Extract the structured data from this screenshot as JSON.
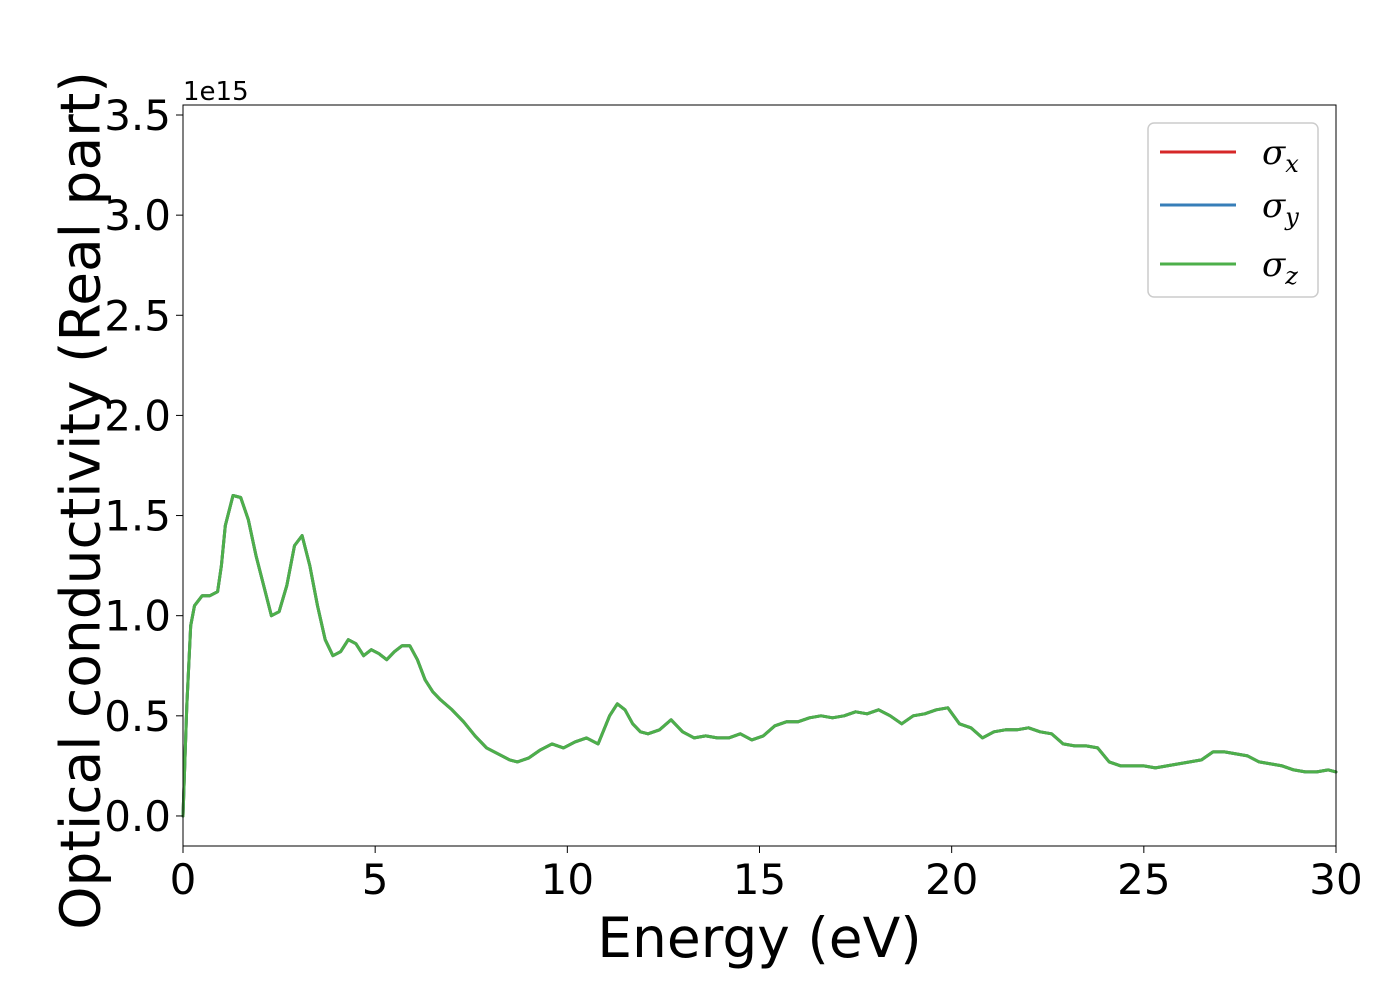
{
  "chart_data": {
    "type": "line",
    "title": "",
    "xlabel": "Energy (eV)",
    "ylabel": "Optical conductivity (Real part)",
    "y_offset_label": "1e15",
    "xlim": [
      0,
      30
    ],
    "ylim": [
      -0.15,
      3.55
    ],
    "x_ticks": [
      0,
      5,
      10,
      15,
      20,
      25,
      30
    ],
    "x_tick_labels": [
      "0",
      "5",
      "10",
      "15",
      "20",
      "25",
      "30"
    ],
    "y_ticks": [
      0.0,
      0.5,
      1.0,
      1.5,
      2.0,
      2.5,
      3.0,
      3.5
    ],
    "y_tick_labels": [
      "0.0",
      "0.5",
      "1.0",
      "1.5",
      "2.0",
      "2.5",
      "3.0",
      "3.5"
    ],
    "grid": false,
    "legend_position": "top-right",
    "x": [
      0,
      0.1,
      0.2,
      0.3,
      0.5,
      0.7,
      0.9,
      1.0,
      1.1,
      1.3,
      1.5,
      1.7,
      1.9,
      2.1,
      2.3,
      2.5,
      2.7,
      2.9,
      3.1,
      3.3,
      3.5,
      3.7,
      3.9,
      4.1,
      4.3,
      4.5,
      4.7,
      4.9,
      5.1,
      5.3,
      5.5,
      5.7,
      5.9,
      6.1,
      6.3,
      6.5,
      6.7,
      7.0,
      7.3,
      7.6,
      7.9,
      8.2,
      8.5,
      8.7,
      9.0,
      9.3,
      9.6,
      9.9,
      10.2,
      10.5,
      10.8,
      11.1,
      11.3,
      11.5,
      11.7,
      11.9,
      12.1,
      12.4,
      12.7,
      13.0,
      13.3,
      13.6,
      13.9,
      14.2,
      14.5,
      14.8,
      15.1,
      15.4,
      15.7,
      16.0,
      16.3,
      16.6,
      16.9,
      17.2,
      17.5,
      17.8,
      18.1,
      18.4,
      18.7,
      19.0,
      19.3,
      19.6,
      19.9,
      20.2,
      20.5,
      20.8,
      21.1,
      21.4,
      21.7,
      22.0,
      22.3,
      22.6,
      22.9,
      23.2,
      23.5,
      23.8,
      24.1,
      24.4,
      24.7,
      25.0,
      25.3,
      25.6,
      25.9,
      26.2,
      26.5,
      26.8,
      27.1,
      27.4,
      27.7,
      28.0,
      28.3,
      28.6,
      28.9,
      29.2,
      29.5,
      29.8,
      30.0
    ],
    "series": [
      {
        "name": "σ_x",
        "color": "#d62728",
        "values": [
          0.0,
          0.55,
          0.95,
          1.05,
          1.1,
          1.1,
          1.12,
          1.25,
          1.45,
          1.6,
          1.59,
          1.48,
          1.3,
          1.15,
          1.0,
          1.02,
          1.15,
          1.35,
          1.4,
          1.25,
          1.05,
          0.88,
          0.8,
          0.82,
          0.88,
          0.86,
          0.8,
          0.83,
          0.81,
          0.78,
          0.82,
          0.85,
          0.85,
          0.78,
          0.68,
          0.62,
          0.58,
          0.53,
          0.47,
          0.4,
          0.34,
          0.31,
          0.28,
          0.27,
          0.29,
          0.33,
          0.36,
          0.34,
          0.37,
          0.39,
          0.36,
          0.5,
          0.56,
          0.53,
          0.46,
          0.42,
          0.41,
          0.43,
          0.48,
          0.42,
          0.39,
          0.4,
          0.39,
          0.39,
          0.41,
          0.38,
          0.4,
          0.45,
          0.47,
          0.47,
          0.49,
          0.5,
          0.49,
          0.5,
          0.52,
          0.51,
          0.53,
          0.5,
          0.46,
          0.5,
          0.51,
          0.53,
          0.54,
          0.46,
          0.44,
          0.39,
          0.42,
          0.43,
          0.43,
          0.44,
          0.42,
          0.41,
          0.36,
          0.35,
          0.35,
          0.34,
          0.27,
          0.25,
          0.25,
          0.25,
          0.24,
          0.25,
          0.26,
          0.27,
          0.28,
          0.32,
          0.32,
          0.31,
          0.3,
          0.27,
          0.26,
          0.25,
          0.23,
          0.22,
          0.22,
          0.23,
          0.22
        ]
      },
      {
        "name": "σ_y",
        "color": "#377eb8",
        "values": [
          0.0,
          0.55,
          0.95,
          1.05,
          1.1,
          1.1,
          1.12,
          1.25,
          1.45,
          1.6,
          1.59,
          1.48,
          1.3,
          1.15,
          1.0,
          1.02,
          1.15,
          1.35,
          1.4,
          1.25,
          1.05,
          0.88,
          0.8,
          0.82,
          0.88,
          0.86,
          0.8,
          0.83,
          0.81,
          0.78,
          0.82,
          0.85,
          0.85,
          0.78,
          0.68,
          0.62,
          0.58,
          0.53,
          0.47,
          0.4,
          0.34,
          0.31,
          0.28,
          0.27,
          0.29,
          0.33,
          0.36,
          0.34,
          0.37,
          0.39,
          0.36,
          0.5,
          0.56,
          0.53,
          0.46,
          0.42,
          0.41,
          0.43,
          0.48,
          0.42,
          0.39,
          0.4,
          0.39,
          0.39,
          0.41,
          0.38,
          0.4,
          0.45,
          0.47,
          0.47,
          0.49,
          0.5,
          0.49,
          0.5,
          0.52,
          0.51,
          0.53,
          0.5,
          0.46,
          0.5,
          0.51,
          0.53,
          0.54,
          0.46,
          0.44,
          0.39,
          0.42,
          0.43,
          0.43,
          0.44,
          0.42,
          0.41,
          0.36,
          0.35,
          0.35,
          0.34,
          0.27,
          0.25,
          0.25,
          0.25,
          0.24,
          0.25,
          0.26,
          0.27,
          0.28,
          0.32,
          0.32,
          0.31,
          0.3,
          0.27,
          0.26,
          0.25,
          0.23,
          0.22,
          0.22,
          0.23,
          0.22
        ]
      },
      {
        "name": "σ_z",
        "color": "#4daf4a",
        "values": [
          0.0,
          0.55,
          0.95,
          1.05,
          1.1,
          1.1,
          1.12,
          1.25,
          1.45,
          1.6,
          1.59,
          1.48,
          1.3,
          1.15,
          1.0,
          1.02,
          1.15,
          1.35,
          1.4,
          1.25,
          1.05,
          0.88,
          0.8,
          0.82,
          0.88,
          0.86,
          0.8,
          0.83,
          0.81,
          0.78,
          0.82,
          0.85,
          0.85,
          0.78,
          0.68,
          0.62,
          0.58,
          0.53,
          0.47,
          0.4,
          0.34,
          0.31,
          0.28,
          0.27,
          0.29,
          0.33,
          0.36,
          0.34,
          0.37,
          0.39,
          0.36,
          0.5,
          0.56,
          0.53,
          0.46,
          0.42,
          0.41,
          0.43,
          0.48,
          0.42,
          0.39,
          0.4,
          0.39,
          0.39,
          0.41,
          0.38,
          0.4,
          0.45,
          0.47,
          0.47,
          0.49,
          0.5,
          0.49,
          0.5,
          0.52,
          0.51,
          0.53,
          0.5,
          0.46,
          0.5,
          0.51,
          0.53,
          0.54,
          0.46,
          0.44,
          0.39,
          0.42,
          0.43,
          0.43,
          0.44,
          0.42,
          0.41,
          0.36,
          0.35,
          0.35,
          0.34,
          0.27,
          0.25,
          0.25,
          0.25,
          0.24,
          0.25,
          0.26,
          0.27,
          0.28,
          0.32,
          0.32,
          0.31,
          0.3,
          0.27,
          0.26,
          0.25,
          0.23,
          0.22,
          0.22,
          0.23,
          0.22
        ]
      }
    ],
    "legend": [
      {
        "symbol": "σ",
        "sub": "x",
        "color": "#d62728"
      },
      {
        "symbol": "σ",
        "sub": "y",
        "color": "#377eb8"
      },
      {
        "symbol": "σ",
        "sub": "z",
        "color": "#4daf4a"
      }
    ]
  }
}
